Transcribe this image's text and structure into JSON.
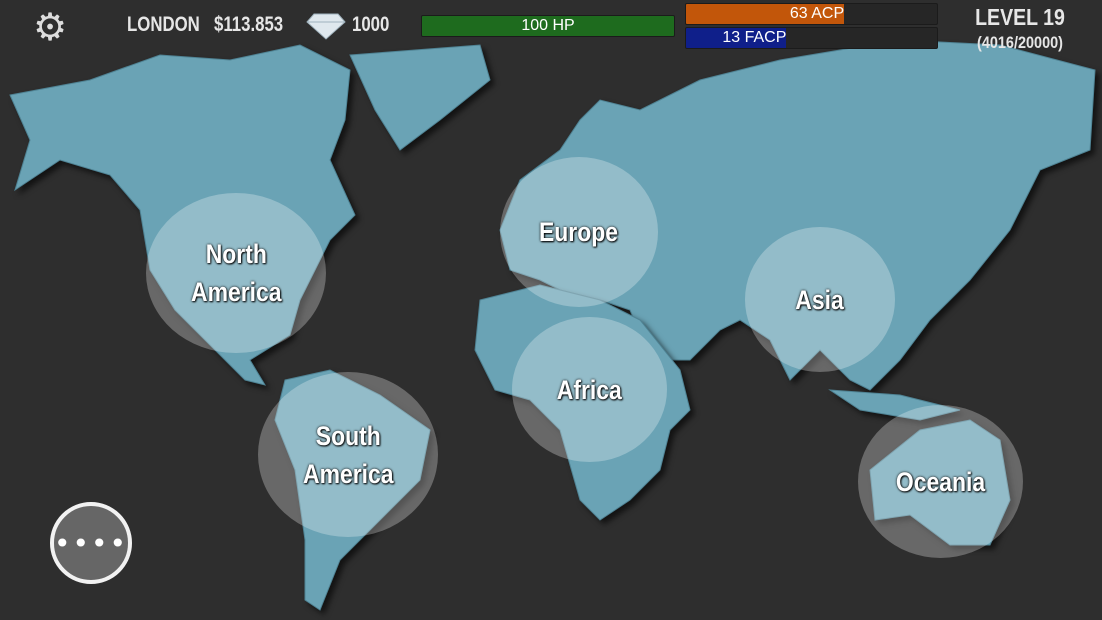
{
  "header": {
    "settings_icon": "gear-icon",
    "city": "LONDON",
    "money": "$113.853",
    "diamond_icon": "diamond-icon",
    "diamonds": "1000",
    "hp": {
      "label": "100 HP",
      "fill": 1.0,
      "color": "#1e6b1e"
    },
    "acp": {
      "label": "63 ACP",
      "fill": 0.63,
      "color": "#c2560a"
    },
    "facp": {
      "label": "13 FACP",
      "fill": 0.4,
      "color": "#0f1f8a"
    },
    "level": "LEVEL 19",
    "xp": "(4016/20000)"
  },
  "regions": [
    {
      "id": "north-america",
      "label": "North\nAmerica"
    },
    {
      "id": "south-america",
      "label": "South\nAmerica"
    },
    {
      "id": "europe",
      "label": "Europe"
    },
    {
      "id": "africa",
      "label": "Africa"
    },
    {
      "id": "asia",
      "label": "Asia"
    },
    {
      "id": "oceania",
      "label": "Oceania"
    }
  ],
  "more_button": {
    "label": "••••",
    "icon": "more-dots-icon"
  }
}
